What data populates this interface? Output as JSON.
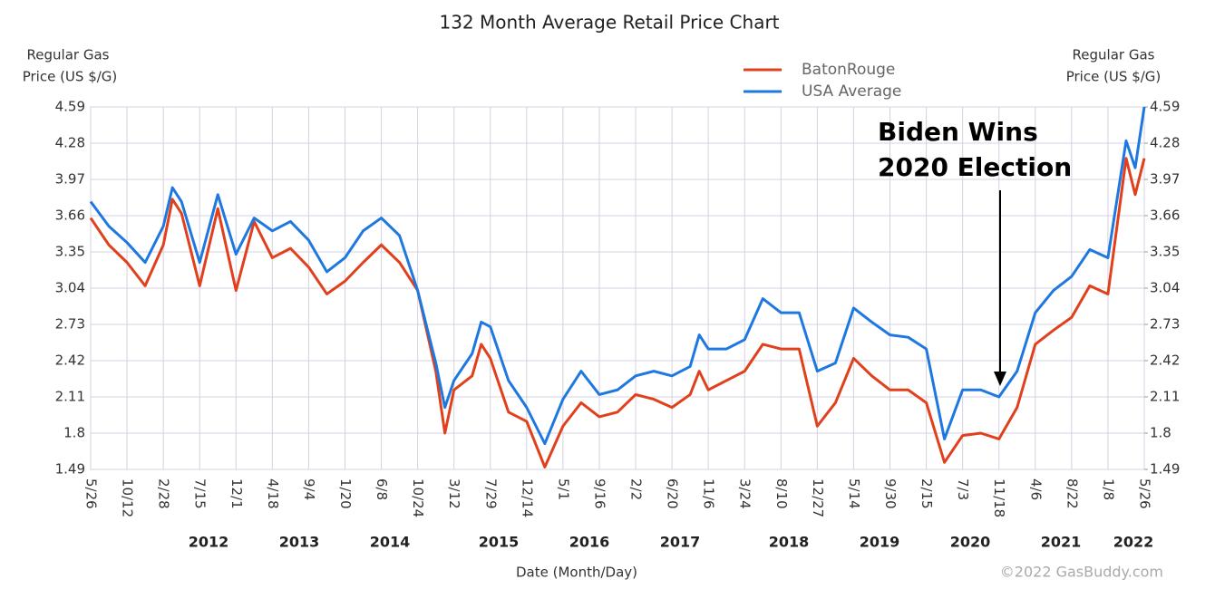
{
  "chart_data": {
    "type": "line",
    "title": "132 Month Average Retail Price Chart",
    "y_label": [
      "Regular Gas",
      "Price (US $/G)"
    ],
    "y2_label": [
      "Regular Gas",
      "Price (US $/G)"
    ],
    "x_label": "Date (Month/Day)",
    "credit": "©2022 GasBuddy.com",
    "annotation": [
      "Biden Wins",
      "2020 Election"
    ],
    "years": [
      "2012",
      "2013",
      "2014",
      "2015",
      "2016",
      "2017",
      "2018",
      "2019",
      "2020",
      "2021",
      "2022"
    ],
    "xlim": [
      0,
      580
    ],
    "xticks": [
      {
        "value": 0,
        "label": "5/26"
      },
      {
        "value": 20,
        "label": "10/12"
      },
      {
        "value": 40,
        "label": "2/28"
      },
      {
        "value": 60,
        "label": "7/15"
      },
      {
        "value": 80,
        "label": "12/1"
      },
      {
        "value": 100,
        "label": "4/18"
      },
      {
        "value": 120,
        "label": "9/4"
      },
      {
        "value": 140,
        "label": "1/20"
      },
      {
        "value": 160,
        "label": "6/8"
      },
      {
        "value": 180,
        "label": "10/24"
      },
      {
        "value": 200,
        "label": "3/12"
      },
      {
        "value": 220,
        "label": "7/29"
      },
      {
        "value": 240,
        "label": "12/14"
      },
      {
        "value": 260,
        "label": "5/1"
      },
      {
        "value": 280,
        "label": "9/16"
      },
      {
        "value": 300,
        "label": "2/2"
      },
      {
        "value": 320,
        "label": "6/20"
      },
      {
        "value": 340,
        "label": "11/6"
      },
      {
        "value": 360,
        "label": "3/24"
      },
      {
        "value": 380,
        "label": "8/10"
      },
      {
        "value": 400,
        "label": "12/27"
      },
      {
        "value": 420,
        "label": "5/14"
      },
      {
        "value": 440,
        "label": "9/30"
      },
      {
        "value": 460,
        "label": "2/15"
      },
      {
        "value": 480,
        "label": "7/3"
      },
      {
        "value": 500,
        "label": "11/18"
      },
      {
        "value": 520,
        "label": "4/6"
      },
      {
        "value": 540,
        "label": "8/22"
      },
      {
        "value": 560,
        "label": "1/8"
      },
      {
        "value": 580,
        "label": "5/26"
      }
    ],
    "ylim": [
      1.49,
      4.59
    ],
    "yticks": [
      1.49,
      1.8,
      2.11,
      2.42,
      2.73,
      3.04,
      3.35,
      3.66,
      3.97,
      4.28,
      4.59
    ],
    "y2lim": [
      1.49,
      4.59
    ],
    "y2ticks": [
      1.49,
      1.8,
      2.11,
      2.42,
      2.73,
      3.04,
      3.35,
      3.66,
      3.97,
      4.28,
      4.59
    ],
    "grid": true,
    "legend": "top",
    "x": [
      0,
      10,
      20,
      30,
      40,
      45,
      50,
      60,
      70,
      80,
      90,
      100,
      110,
      120,
      130,
      140,
      150,
      160,
      170,
      180,
      190,
      195,
      200,
      210,
      215,
      220,
      230,
      240,
      250,
      260,
      270,
      280,
      290,
      300,
      310,
      320,
      330,
      335,
      340,
      350,
      360,
      370,
      380,
      390,
      400,
      410,
      420,
      430,
      440,
      450,
      460,
      470,
      480,
      490,
      500,
      510,
      520,
      530,
      540,
      550,
      560,
      570,
      575,
      580
    ],
    "series": [
      {
        "name": "BatonRouge",
        "color": "#e0401c",
        "values": [
          3.64,
          3.41,
          3.26,
          3.06,
          3.41,
          3.8,
          3.68,
          3.06,
          3.72,
          3.02,
          3.61,
          3.3,
          3.38,
          3.22,
          2.99,
          3.1,
          3.26,
          3.41,
          3.26,
          3.02,
          2.33,
          1.8,
          2.17,
          2.29,
          2.56,
          2.44,
          1.98,
          1.9,
          1.51,
          1.86,
          2.06,
          1.94,
          1.98,
          2.13,
          2.09,
          2.02,
          2.13,
          2.33,
          2.17,
          2.25,
          2.33,
          2.56,
          2.52,
          2.52,
          1.86,
          2.06,
          2.44,
          2.29,
          2.17,
          2.17,
          2.06,
          1.55,
          1.78,
          1.8,
          1.75,
          2.02,
          2.56,
          2.68,
          2.79,
          3.06,
          2.99,
          4.15,
          3.84,
          4.15
        ]
      },
      {
        "name": "USA Average",
        "color": "#1e78e0",
        "values": [
          3.78,
          3.57,
          3.43,
          3.26,
          3.57,
          3.9,
          3.78,
          3.26,
          3.84,
          3.33,
          3.64,
          3.53,
          3.61,
          3.45,
          3.18,
          3.3,
          3.53,
          3.64,
          3.49,
          3.02,
          2.4,
          2.02,
          2.25,
          2.48,
          2.75,
          2.71,
          2.25,
          2.02,
          1.71,
          2.09,
          2.33,
          2.13,
          2.17,
          2.29,
          2.33,
          2.29,
          2.37,
          2.64,
          2.52,
          2.52,
          2.6,
          2.95,
          2.83,
          2.83,
          2.33,
          2.4,
          2.87,
          2.75,
          2.64,
          2.62,
          2.52,
          1.75,
          2.17,
          2.17,
          2.11,
          2.33,
          2.83,
          3.02,
          3.14,
          3.37,
          3.3,
          4.3,
          4.07,
          4.59
        ]
      }
    ]
  }
}
